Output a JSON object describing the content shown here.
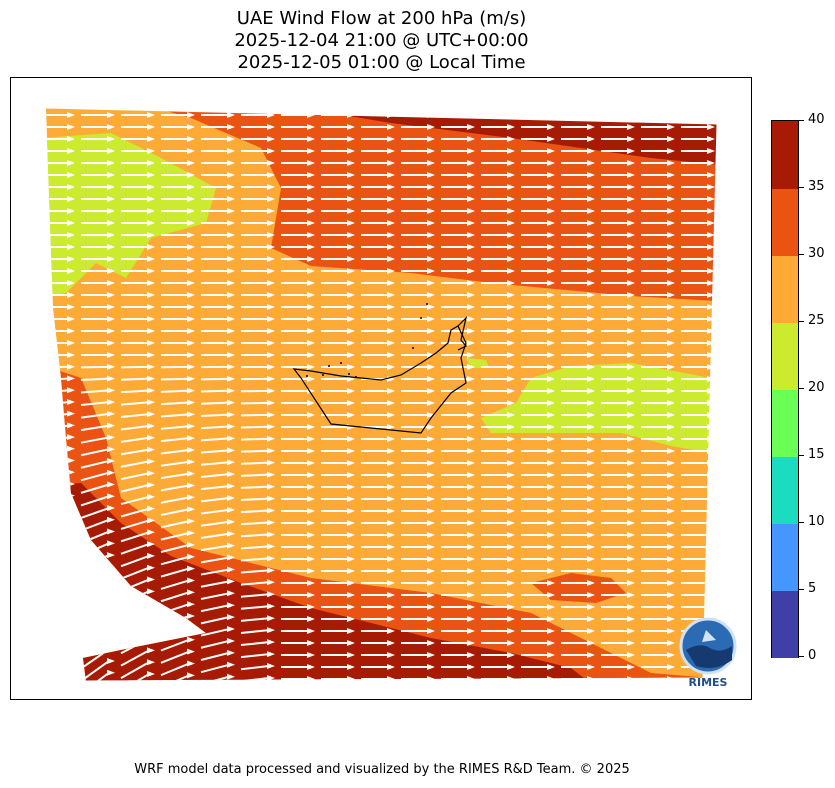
{
  "title": {
    "line1": "UAE Wind Flow at 200 hPa (m/s)",
    "line2": "2025-12-04 21:00 @ UTC+00:00",
    "line3": "2025-12-05 01:00 @ Local Time"
  },
  "colorbar": {
    "ticks": [
      "0",
      "5",
      "10",
      "15",
      "20",
      "25",
      "30",
      "35",
      "40"
    ],
    "bins": [
      {
        "min": 0,
        "max": 5,
        "color": "#3f3fa7"
      },
      {
        "min": 5,
        "max": 10,
        "color": "#4596ff"
      },
      {
        "min": 10,
        "max": 15,
        "color": "#1bdcbf"
      },
      {
        "min": 15,
        "max": 20,
        "color": "#69ff57"
      },
      {
        "min": 20,
        "max": 25,
        "color": "#cceb2e"
      },
      {
        "min": 25,
        "max": 30,
        "color": "#fdaa36"
      },
      {
        "min": 30,
        "max": 35,
        "color": "#ea5312"
      },
      {
        "min": 35,
        "max": 40,
        "color": "#a71a04"
      }
    ]
  },
  "map": {
    "wind_direction": "west-to-east",
    "arrow_color": "#ffffff",
    "border_color": "#000000"
  },
  "logo": {
    "text": "RIMES"
  },
  "footer": "WRF model data processed and visualized by the RIMES R&D Team. © 2025"
}
